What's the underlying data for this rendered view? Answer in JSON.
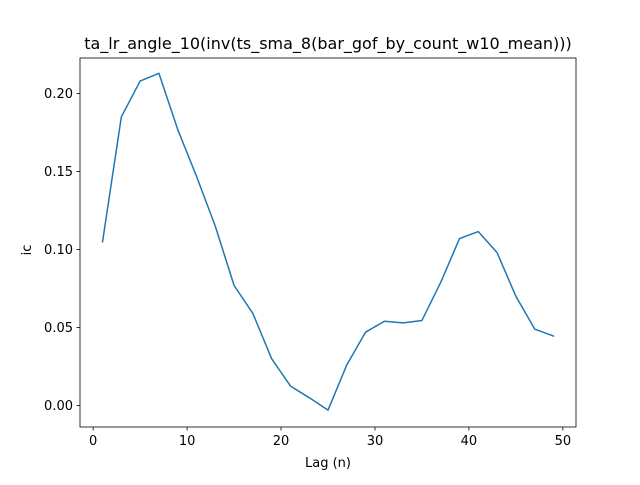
{
  "chart_data": {
    "type": "line",
    "title": "ta_lr_angle_10(inv(ts_sma_8(bar_gof_by_count_w10_mean)))",
    "xlabel": "Lag (n)",
    "ylabel": "ic",
    "xlim": [
      -1.4,
      51.4
    ],
    "ylim": [
      -0.0138,
      0.2228
    ],
    "x_ticks": [
      0,
      10,
      20,
      30,
      40,
      50
    ],
    "x_tick_labels": [
      "0",
      "10",
      "20",
      "30",
      "40",
      "50"
    ],
    "y_ticks": [
      0.0,
      0.05,
      0.1,
      0.15,
      0.2
    ],
    "y_tick_labels": [
      "0.00",
      "0.05",
      "0.10",
      "0.15",
      "0.20"
    ],
    "grid": false,
    "legend": "none",
    "series": [
      {
        "color": "#1f77b4",
        "x": [
          1,
          3,
          5,
          7,
          9,
          11,
          13,
          15,
          17,
          19,
          21,
          23,
          25,
          27,
          29,
          31,
          33,
          35,
          37,
          39,
          41,
          43,
          45,
          47,
          49
        ],
        "values": [
          0.105,
          0.185,
          0.208,
          0.213,
          0.177,
          0.147,
          0.115,
          0.077,
          0.059,
          0.03,
          0.0125,
          0.005,
          -0.003,
          0.026,
          0.047,
          0.054,
          0.053,
          0.0545,
          0.079,
          0.107,
          0.1115,
          0.098,
          0.07,
          0.049,
          0.0445
        ]
      }
    ]
  }
}
